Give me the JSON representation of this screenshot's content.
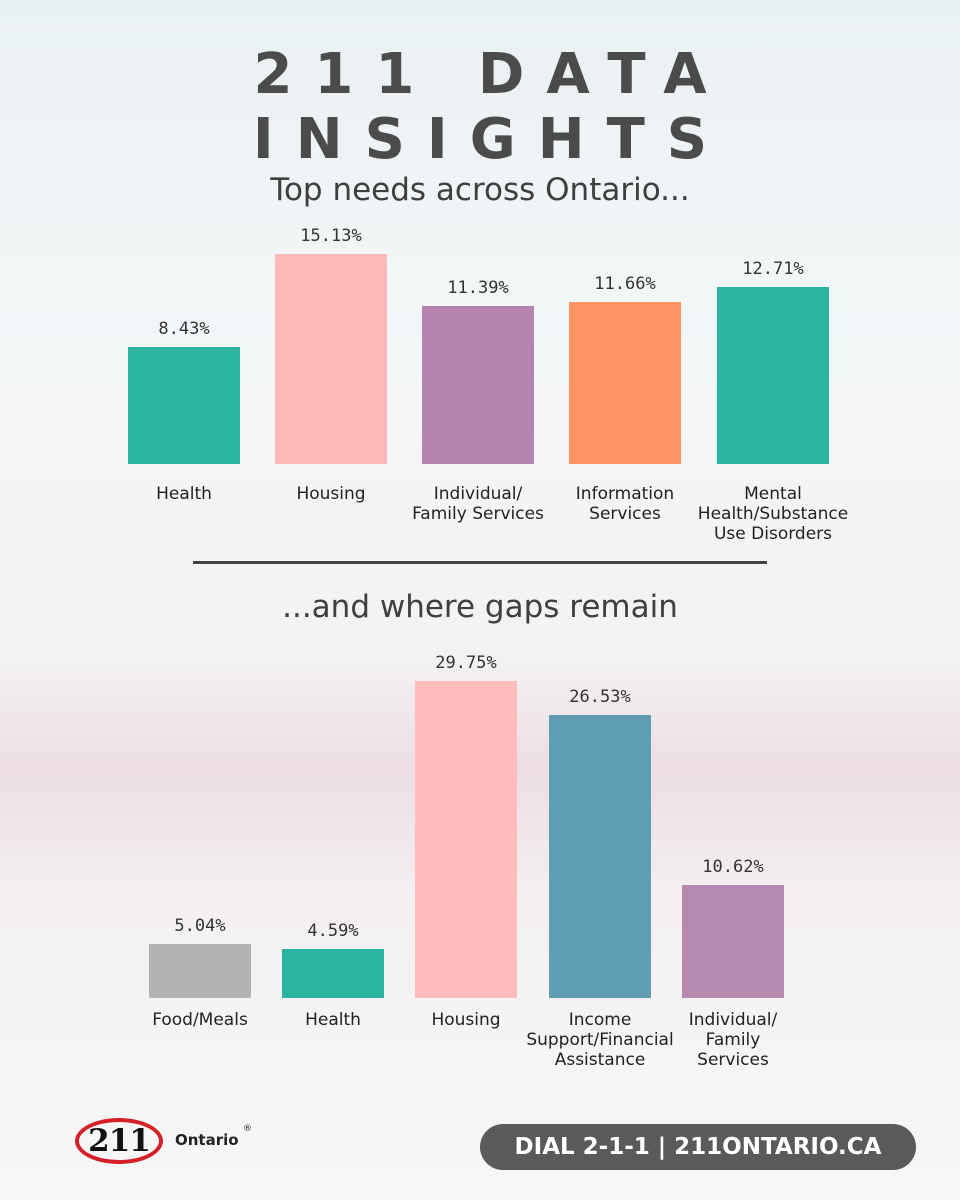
{
  "title": "211 DATA INSIGHTS",
  "chart_data": [
    {
      "type": "bar",
      "title": "Top needs across Ontario...",
      "categories": [
        "Health",
        "Housing",
        "Individual/\nFamily Services",
        "Information\nServices",
        "Mental\nHealth/Substance\nUse Disorders"
      ],
      "values": [
        8.43,
        15.13,
        11.39,
        11.66,
        12.71
      ],
      "value_labels": [
        "8.43%",
        "15.13%",
        "11.39%",
        "11.66%",
        "12.71%"
      ],
      "colors": [
        "#2bb5a0",
        "#ffb8b8",
        "#b584ae",
        "#ff9466",
        "#2bb5a0"
      ]
    },
    {
      "type": "bar",
      "title": "...and where gaps remain",
      "categories": [
        "Food/Meals",
        "Health",
        "Housing",
        "Income\nSupport/Financial\nAssistance",
        "Individual/\nFamily\nServices"
      ],
      "values": [
        5.04,
        4.59,
        29.75,
        26.53,
        10.62
      ],
      "value_labels": [
        "5.04%",
        "4.59%",
        "29.75%",
        "26.53%",
        "10.62%"
      ],
      "colors": [
        "#b3b3b3",
        "#2bb5a0",
        "#ffbcbc",
        "#5f9db0",
        "#b589b0"
      ]
    }
  ],
  "footer": {
    "logo": "211",
    "brand": "Ontario",
    "registered": "®",
    "cta": "DIAL 2-1-1 | 211ONTARIO.CA"
  }
}
